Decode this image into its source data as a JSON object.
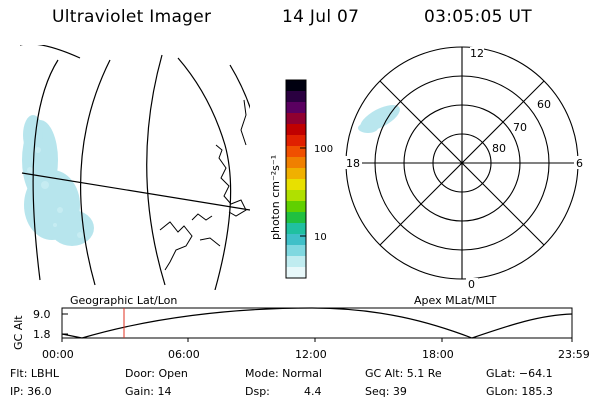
{
  "header": {
    "title": "Ultraviolet Imager",
    "date": "14 Jul 07",
    "time": "03:05:05 UT"
  },
  "colorbar": {
    "unit_label": "photon cm⁻²s⁻¹",
    "ticks": [
      "100",
      "10"
    ],
    "colors": [
      "#000010",
      "#2a0040",
      "#5a0060",
      "#900030",
      "#c00000",
      "#e02000",
      "#f05000",
      "#f08000",
      "#f0b000",
      "#e8e000",
      "#b0e000",
      "#60d000",
      "#20c040",
      "#20c0a0",
      "#40c0c8",
      "#80d8e0",
      "#c0ecf0",
      "#e8f8fa"
    ]
  },
  "polar_plot": {
    "mlt_labels": {
      "top": "12",
      "bottom": "0",
      "left": "18",
      "right": "6"
    },
    "lat_labels": [
      "60",
      "70",
      "80"
    ]
  },
  "altitude_panel": {
    "left_title": "Geographic Lat/Lon",
    "right_title": "Apex MLat/MLT",
    "ylabel": "GC Alt",
    "yticks": [
      "9.0",
      "1.8"
    ],
    "xticks": [
      "00:00",
      "06:00",
      "12:00",
      "18:00",
      "23:59"
    ],
    "marker_color": "#e03020"
  },
  "info": {
    "filter": "Flt: LBHL",
    "ip": "IP: 36.0",
    "door": "Door: Open",
    "gain": "Gain: 14",
    "mode": "Mode: Normal",
    "dsp_label": "Dsp:",
    "dsp_value": "4.4",
    "gc_alt": "GC Alt: 5.1 Re",
    "seq": "Seq: 39",
    "glat": "GLat: −64.1",
    "glon": "GLon: 185.3"
  }
}
